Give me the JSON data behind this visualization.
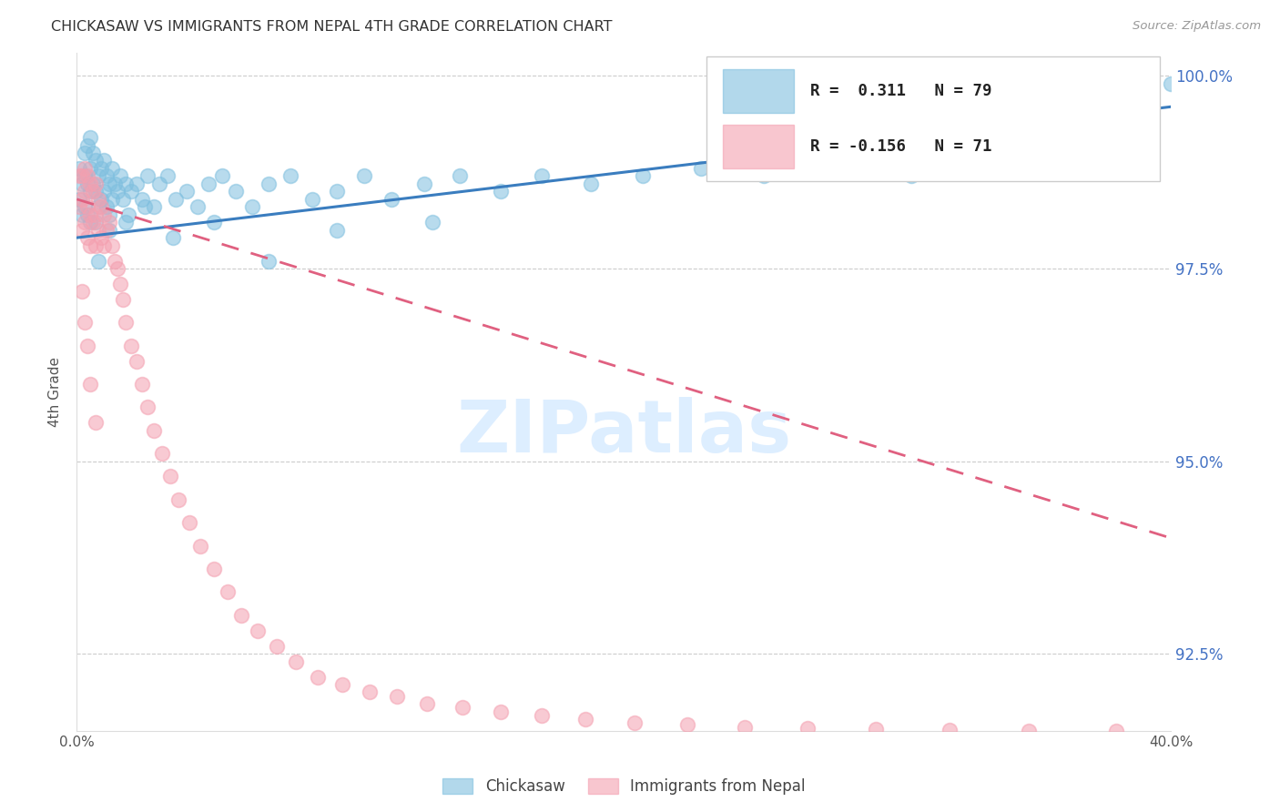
{
  "title": "CHICKASAW VS IMMIGRANTS FROM NEPAL 4TH GRADE CORRELATION CHART",
  "source": "Source: ZipAtlas.com",
  "ylabel": "4th Grade",
  "x_min": 0.0,
  "x_max": 0.4,
  "y_min": 0.915,
  "y_max": 1.003,
  "y_ticks": [
    0.925,
    0.95,
    0.975,
    1.0
  ],
  "y_tick_labels": [
    "92.5%",
    "95.0%",
    "97.5%",
    "100.0%"
  ],
  "chickasaw_color": "#7fbfdf",
  "nepal_color": "#f4a0b0",
  "chickasaw_line_color": "#3a7dbf",
  "nepal_line_color": "#e06080",
  "R_chickasaw": 0.311,
  "N_chickasaw": 79,
  "R_nepal": -0.156,
  "N_nepal": 71,
  "watermark_text": "ZIPatlas",
  "watermark_color": "#ddeeff",
  "background_color": "#ffffff",
  "grid_color": "#cccccc",
  "right_axis_color": "#4472c4",
  "legend_label_1": "Chickasaw",
  "legend_label_2": "Immigrants from Nepal",
  "chickasaw_x": [
    0.001,
    0.001,
    0.002,
    0.002,
    0.003,
    0.003,
    0.003,
    0.004,
    0.004,
    0.004,
    0.005,
    0.005,
    0.005,
    0.006,
    0.006,
    0.007,
    0.007,
    0.007,
    0.008,
    0.008,
    0.009,
    0.009,
    0.01,
    0.01,
    0.011,
    0.011,
    0.012,
    0.012,
    0.013,
    0.013,
    0.014,
    0.015,
    0.016,
    0.017,
    0.018,
    0.019,
    0.02,
    0.022,
    0.024,
    0.026,
    0.028,
    0.03,
    0.033,
    0.036,
    0.04,
    0.044,
    0.048,
    0.053,
    0.058,
    0.064,
    0.07,
    0.078,
    0.086,
    0.095,
    0.105,
    0.115,
    0.127,
    0.14,
    0.155,
    0.17,
    0.188,
    0.207,
    0.228,
    0.251,
    0.277,
    0.305,
    0.336,
    0.37,
    0.4,
    0.005,
    0.008,
    0.012,
    0.018,
    0.025,
    0.035,
    0.05,
    0.07,
    0.095,
    0.13
  ],
  "chickasaw_y": [
    0.988,
    0.984,
    0.986,
    0.982,
    0.99,
    0.987,
    0.983,
    0.991,
    0.986,
    0.982,
    0.988,
    0.985,
    0.981,
    0.99,
    0.986,
    0.989,
    0.985,
    0.981,
    0.987,
    0.983,
    0.988,
    0.984,
    0.989,
    0.985,
    0.987,
    0.983,
    0.986,
    0.982,
    0.984,
    0.988,
    0.986,
    0.985,
    0.987,
    0.984,
    0.986,
    0.982,
    0.985,
    0.986,
    0.984,
    0.987,
    0.983,
    0.986,
    0.987,
    0.984,
    0.985,
    0.983,
    0.986,
    0.987,
    0.985,
    0.983,
    0.986,
    0.987,
    0.984,
    0.985,
    0.987,
    0.984,
    0.986,
    0.987,
    0.985,
    0.987,
    0.986,
    0.987,
    0.988,
    0.987,
    0.988,
    0.987,
    0.989,
    0.988,
    0.999,
    0.992,
    0.976,
    0.98,
    0.981,
    0.983,
    0.979,
    0.981,
    0.976,
    0.98,
    0.981
  ],
  "nepal_x": [
    0.001,
    0.001,
    0.002,
    0.002,
    0.002,
    0.003,
    0.003,
    0.003,
    0.004,
    0.004,
    0.004,
    0.005,
    0.005,
    0.005,
    0.006,
    0.006,
    0.007,
    0.007,
    0.007,
    0.008,
    0.008,
    0.009,
    0.009,
    0.01,
    0.01,
    0.011,
    0.012,
    0.013,
    0.014,
    0.015,
    0.016,
    0.017,
    0.018,
    0.02,
    0.022,
    0.024,
    0.026,
    0.028,
    0.031,
    0.034,
    0.037,
    0.041,
    0.045,
    0.05,
    0.055,
    0.06,
    0.066,
    0.073,
    0.08,
    0.088,
    0.097,
    0.107,
    0.117,
    0.128,
    0.141,
    0.155,
    0.17,
    0.186,
    0.204,
    0.223,
    0.244,
    0.267,
    0.292,
    0.319,
    0.348,
    0.38,
    0.002,
    0.003,
    0.004,
    0.005,
    0.007
  ],
  "nepal_y": [
    0.987,
    0.983,
    0.987,
    0.984,
    0.98,
    0.988,
    0.985,
    0.981,
    0.987,
    0.983,
    0.979,
    0.986,
    0.982,
    0.978,
    0.985,
    0.981,
    0.986,
    0.982,
    0.978,
    0.984,
    0.98,
    0.983,
    0.979,
    0.982,
    0.978,
    0.98,
    0.981,
    0.978,
    0.976,
    0.975,
    0.973,
    0.971,
    0.968,
    0.965,
    0.963,
    0.96,
    0.957,
    0.954,
    0.951,
    0.948,
    0.945,
    0.942,
    0.939,
    0.936,
    0.933,
    0.93,
    0.928,
    0.926,
    0.924,
    0.922,
    0.921,
    0.92,
    0.9195,
    0.9185,
    0.918,
    0.9175,
    0.917,
    0.9165,
    0.916,
    0.9158,
    0.9155,
    0.9153,
    0.9152,
    0.9151,
    0.915,
    0.915,
    0.972,
    0.968,
    0.965,
    0.96,
    0.955
  ],
  "chick_trend_x": [
    0.0,
    0.4
  ],
  "chick_trend_y": [
    0.979,
    0.996
  ],
  "nepal_trend_x": [
    0.0,
    0.4
  ],
  "nepal_trend_y": [
    0.984,
    0.94
  ]
}
